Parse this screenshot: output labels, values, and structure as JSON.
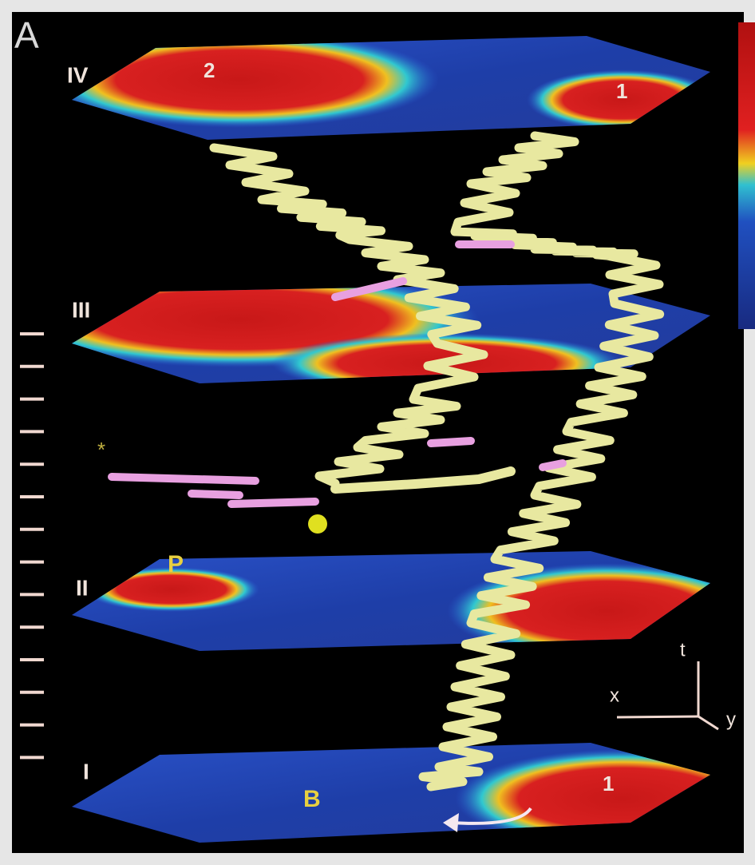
{
  "panel": {
    "label": "A"
  },
  "planes": [
    {
      "label": "IV",
      "markers": [
        "2",
        "1"
      ]
    },
    {
      "label": "III"
    },
    {
      "label": "II",
      "markers": [
        "P"
      ]
    },
    {
      "label": "I",
      "markers": [
        "B",
        "1"
      ]
    }
  ],
  "annotation": {
    "asterisk": "*"
  },
  "axes": {
    "t": "t",
    "x": "x",
    "y": "y"
  }
}
